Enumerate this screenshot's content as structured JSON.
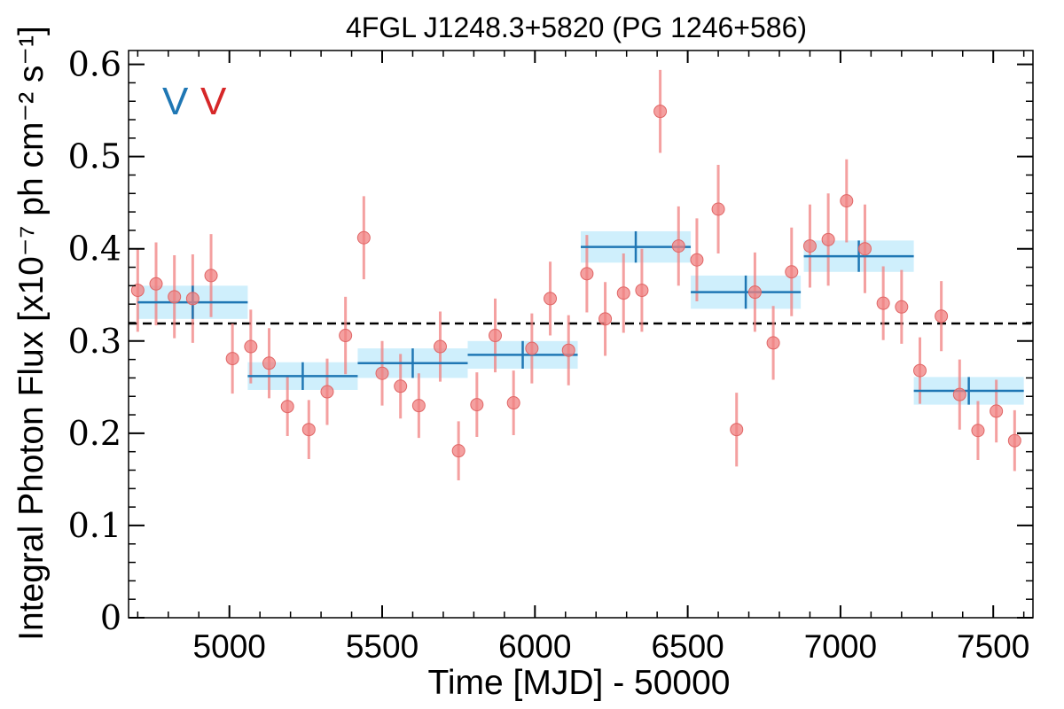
{
  "chart_data": {
    "type": "scatter",
    "title": "4FGL J1248.3+5820 (PG 1246+586)",
    "xlabel": "Time [MJD] - 50000",
    "ylabel": "Integral Photon Flux [x10⁻⁷ ph cm⁻² s⁻¹]",
    "xlim": [
      4670,
      7630
    ],
    "ylim": [
      0,
      0.615
    ],
    "xticks": [
      5000,
      5500,
      6000,
      6500,
      7000,
      7500
    ],
    "xtick_labels": [
      "5000",
      "5500",
      "6000",
      "6500",
      "7000",
      "7500"
    ],
    "yticks": [
      0,
      0.1,
      0.2,
      0.3,
      0.4,
      0.5,
      0.6
    ],
    "ytick_labels": [
      "0",
      "0.1",
      "0.2",
      "0.3",
      "0.4",
      "0.5",
      "0.6"
    ],
    "mean_flux": 0.319,
    "annotations": [
      {
        "text": "V",
        "color": "#1f77b4"
      },
      {
        "text": "V",
        "color": "#d62728"
      }
    ],
    "colors": {
      "points": "#f08080",
      "point_edge": "#e06666",
      "bins_line": "#1f77b4",
      "bins_band": "#cfeffc",
      "mean_line": "#000000"
    },
    "series": [
      {
        "kind": "short_bins",
        "x": [
          4700,
          4760,
          4820,
          4880,
          4940,
          5010,
          5070,
          5130,
          5190,
          5260,
          5320,
          5380,
          5440,
          5500,
          5560,
          5620,
          5690,
          5750,
          5810,
          5870,
          5930,
          5990,
          6050,
          6110,
          6170,
          6230,
          6290,
          6350,
          6410,
          6470,
          6530,
          6600,
          6660,
          6720,
          6780,
          6840,
          6900,
          6960,
          7020,
          7080,
          7140,
          7200,
          7260,
          7330,
          7390,
          7450,
          7510,
          7570
        ],
        "y": [
          0.355,
          0.362,
          0.348,
          0.346,
          0.371,
          0.281,
          0.294,
          0.276,
          0.229,
          0.204,
          0.245,
          0.306,
          0.412,
          0.265,
          0.251,
          0.23,
          0.294,
          0.181,
          0.231,
          0.306,
          0.233,
          0.292,
          0.346,
          0.29,
          0.373,
          0.324,
          0.352,
          0.355,
          0.549,
          0.403,
          0.388,
          0.443,
          0.204,
          0.353,
          0.298,
          0.375,
          0.403,
          0.41,
          0.452,
          0.4,
          0.341,
          0.337,
          0.268,
          0.327,
          0.242,
          0.203,
          0.224,
          0.192
        ],
        "yerr": [
          0.045,
          0.045,
          0.045,
          0.048,
          0.045,
          0.038,
          0.04,
          0.038,
          0.032,
          0.032,
          0.036,
          0.042,
          0.045,
          0.035,
          0.035,
          0.035,
          0.038,
          0.032,
          0.035,
          0.04,
          0.035,
          0.038,
          0.04,
          0.038,
          0.042,
          0.04,
          0.043,
          0.045,
          0.045,
          0.043,
          0.045,
          0.048,
          0.04,
          0.043,
          0.04,
          0.048,
          0.045,
          0.05,
          0.045,
          0.048,
          0.04,
          0.04,
          0.036,
          0.038,
          0.038,
          0.032,
          0.034,
          0.033
        ]
      },
      {
        "kind": "long_bins",
        "x": [
          4880,
          5240,
          5600,
          5960,
          6330,
          6690,
          7060,
          7420
        ],
        "xerr": [
          180,
          180,
          180,
          180,
          180,
          180,
          180,
          180
        ],
        "y": [
          0.342,
          0.262,
          0.276,
          0.285,
          0.402,
          0.353,
          0.392,
          0.246
        ],
        "yerr": [
          0.018,
          0.015,
          0.016,
          0.015,
          0.017,
          0.018,
          0.017,
          0.015
        ]
      }
    ],
    "grid": false,
    "legend": "none"
  }
}
